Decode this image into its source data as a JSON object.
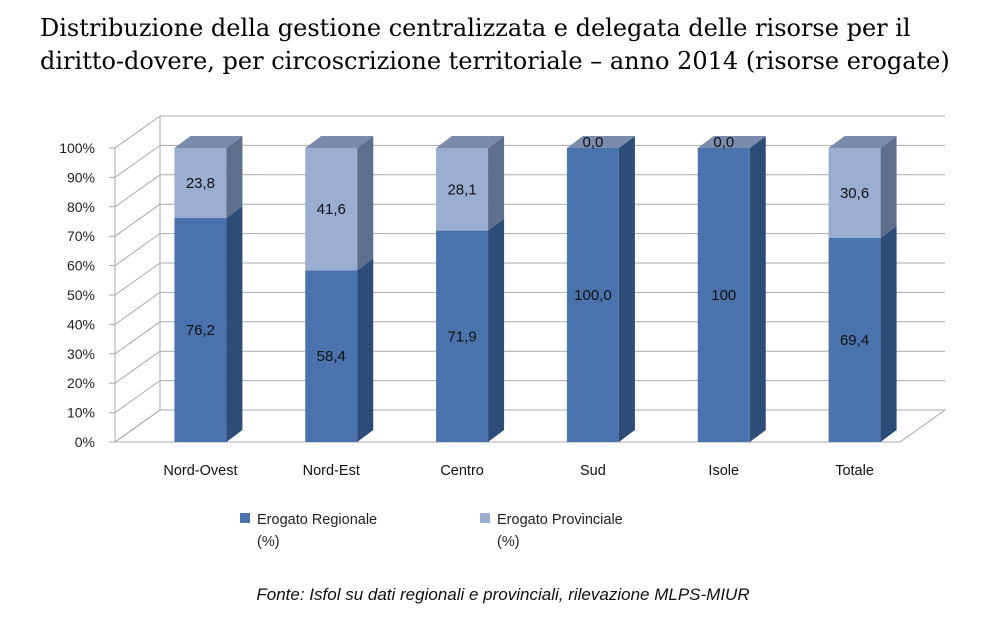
{
  "title": "Distribuzione della gestione centralizzata e delegata delle risorse per il diritto-dovere, per circoscrizione territoriale – anno 2014 (risorse erogate)",
  "source": "Fonte: Isfol su dati regionali e provinciali, rilevazione MLPS-MIUR",
  "colors": {
    "regionale_front": "#4a72ad",
    "regionale_side": "#2e4c78",
    "regionale_top": "#6d8dbb",
    "provinciale_front": "#9aaed2",
    "provinciale_side": "#5e6f8e",
    "provinciale_top": "#7b8bab",
    "grid": "#a9a9a9"
  },
  "chart_data": {
    "type": "bar",
    "stacked": true,
    "three_d": true,
    "categories": [
      "Nord-Ovest",
      "Nord-Est",
      "Centro",
      "Sud",
      "Isole",
      "Totale"
    ],
    "series": [
      {
        "name": "Erogato Regionale (%)",
        "values": [
          76.2,
          58.4,
          71.9,
          100.0,
          100,
          69.4
        ],
        "labels": [
          "76,2",
          "58,4",
          "71,9",
          "100,0",
          "100",
          "69,4"
        ]
      },
      {
        "name": "Erogato Provinciale (%)",
        "values": [
          23.8,
          41.6,
          28.1,
          0.0,
          0.0,
          30.6
        ],
        "labels": [
          "23,8",
          "41,6",
          "28,1",
          "0,0",
          "0,0",
          "30,6"
        ]
      }
    ],
    "yticks": [
      "0%",
      "10%",
      "20%",
      "30%",
      "40%",
      "50%",
      "60%",
      "70%",
      "80%",
      "90%",
      "100%"
    ],
    "ylim": [
      0,
      100
    ],
    "grid": true,
    "legend": {
      "position": "bottom",
      "entries": [
        {
          "line1": "Erogato Regionale",
          "line2": "(%)"
        },
        {
          "line1": "Erogato Provinciale",
          "line2": "(%)"
        }
      ]
    }
  }
}
